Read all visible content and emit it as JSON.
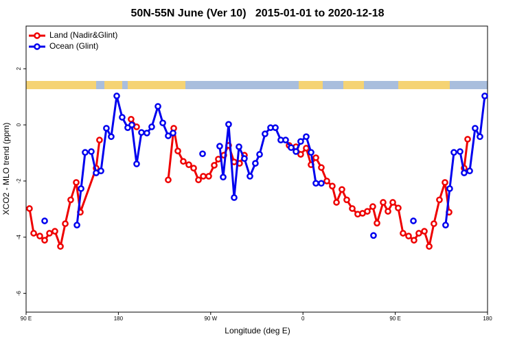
{
  "chart_data": {
    "type": "line",
    "title": "50N-55N June (Ver 10)   2015-01-01 to 2020-12-18",
    "x_label": "Longitude (deg E)",
    "y_label": "XCO2 - MLO trend (ppm)",
    "xlim": [
      90,
      540
    ],
    "xticks": [
      {
        "value": 90,
        "label": "90 E"
      },
      {
        "value": 180,
        "label": "180"
      },
      {
        "value": 270,
        "label": "90 W"
      },
      {
        "value": 360,
        "label": "0"
      },
      {
        "value": 450,
        "label": "90 E"
      },
      {
        "value": 540,
        "label": "180"
      }
    ],
    "ylim": [
      -6.67,
      3.52
    ],
    "yticks": [
      -6,
      -4,
      -2,
      0,
      2
    ],
    "legend": "top-left",
    "series": [
      {
        "name": "Land (Nadir&Glint)",
        "color": "#ee0000",
        "x": [
          93.3,
          97.4,
          103.4,
          108.1,
          112.8,
          118.1,
          123.5,
          128.2,
          133.5,
          138.9,
          142.9,
          158.3,
          161.6,
          null,
          192.4,
          197.8,
          null,
          228.6,
          234.0,
          238.0,
          243.3,
          248.7,
          253.4,
          258.1,
          262.8,
          268.1,
          273.5,
          277.5,
          282.8,
          287.5,
          292.9,
          298.2,
          302.9,
          null,
          346.5,
          353.2,
          357.8,
          363.2,
          367.9,
          372.6,
          377.9,
          383.3,
          388.6,
          392.7,
          398.0,
          402.7,
          408.1,
          413.4,
          418.1,
          422.8,
          428.1,
          432.2,
          438.2,
          442.9,
          447.6,
          452.9,
          457.6,
          463.0,
          468.3,
          473.0,
          478.4,
          483.1,
          487.7,
          493.1,
          498.5,
          502.5,
          null,
          517.2,
          520.6
        ],
        "values": [
          -2.98,
          -3.86,
          -3.96,
          -4.11,
          -3.86,
          -3.79,
          -4.33,
          -3.52,
          -2.67,
          -2.05,
          -3.11,
          -1.54,
          -0.54,
          null,
          0.2,
          -0.07,
          null,
          -1.96,
          -0.12,
          -0.93,
          -1.3,
          -1.42,
          -1.54,
          -1.96,
          -1.83,
          -1.83,
          -1.44,
          -1.22,
          -1.08,
          -0.73,
          -1.32,
          -1.37,
          -1.08,
          null,
          -0.73,
          -0.78,
          -1.05,
          -0.83,
          -1.42,
          -1.17,
          -1.52,
          -2.0,
          -2.18,
          -2.76,
          -2.3,
          -2.67,
          -2.98,
          -3.18,
          -3.15,
          -3.08,
          -2.91,
          -3.5,
          -2.76,
          -3.08,
          -2.76,
          -2.96,
          -3.86,
          -3.96,
          -4.11,
          -3.86,
          -3.79,
          -4.33,
          -3.52,
          -2.67,
          -2.05,
          -3.11,
          null,
          -1.54,
          -0.51
        ]
      },
      {
        "name": "Ocean (Glint)",
        "color": "#0000ee",
        "x": [
          108.1,
          null,
          139.6,
          143.6,
          147.6,
          153.6,
          158.3,
          163.0,
          168.3,
          173.0,
          178.4,
          183.7,
          189.1,
          193.1,
          197.8,
          202.5,
          207.8,
          212.5,
          218.6,
          223.3,
          228.6,
          233.3,
          null,
          262.1,
          null,
          278.8,
          282.2,
          287.5,
          292.9,
          297.6,
          302.9,
          308.3,
          313.6,
          317.7,
          323.0,
          328.4,
          333.1,
          338.4,
          343.1,
          348.5,
          353.2,
          357.8,
          363.2,
          367.9,
          372.6,
          377.9,
          null,
          428.8,
          null,
          467.7,
          null,
          499.1,
          503.1,
          507.2,
          513.2,
          517.2,
          522.6,
          527.9,
          532.6,
          537.3
        ],
        "values": [
          -3.42,
          null,
          -3.57,
          -2.27,
          -0.98,
          -0.95,
          -1.71,
          -1.64,
          -0.12,
          -0.42,
          1.03,
          0.27,
          -0.1,
          0.0,
          -1.39,
          -0.27,
          -0.29,
          -0.07,
          0.66,
          0.07,
          -0.39,
          -0.29,
          null,
          -1.03,
          null,
          -0.76,
          -1.86,
          0.02,
          -2.59,
          -0.78,
          -1.2,
          -1.83,
          -1.37,
          -1.05,
          -0.32,
          -0.1,
          -0.1,
          -0.54,
          -0.54,
          -0.81,
          -0.95,
          -0.59,
          -0.42,
          -0.98,
          -2.08,
          -2.08,
          null,
          -3.94,
          null,
          -3.42,
          null,
          -3.57,
          -2.27,
          -0.98,
          -0.95,
          -1.71,
          -1.64,
          -0.12,
          -0.42,
          1.03
        ]
      }
    ]
  }
}
